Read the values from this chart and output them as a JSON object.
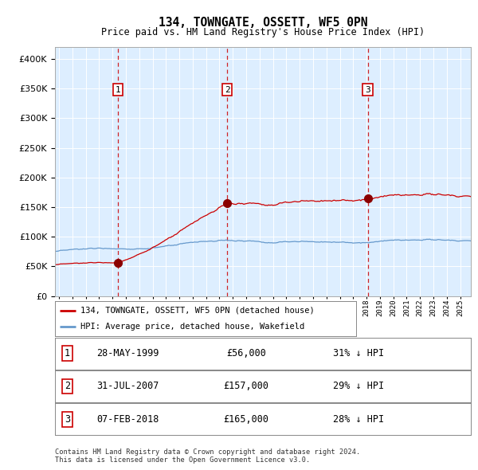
{
  "title": "134, TOWNGATE, OSSETT, WF5 0PN",
  "subtitle": "Price paid vs. HM Land Registry's House Price Index (HPI)",
  "background_color": "#ddeeff",
  "hpi_color": "#6699cc",
  "price_color": "#cc0000",
  "vline_color": "#cc0000",
  "purchases": [
    {
      "date_year": 1999.41,
      "price": 56000,
      "label": "1"
    },
    {
      "date_year": 2007.58,
      "price": 157000,
      "label": "2"
    },
    {
      "date_year": 2018.09,
      "price": 165000,
      "label": "3"
    }
  ],
  "purchase_labels": [
    {
      "label": "1",
      "date": "28-MAY-1999",
      "price": "£56,000",
      "note": "31% ↓ HPI"
    },
    {
      "label": "2",
      "date": "31-JUL-2007",
      "price": "£157,000",
      "note": "29% ↓ HPI"
    },
    {
      "label": "3",
      "date": "07-FEB-2018",
      "price": "£165,000",
      "note": "28% ↓ HPI"
    }
  ],
  "legend_entries": [
    "134, TOWNGATE, OSSETT, WF5 0PN (detached house)",
    "HPI: Average price, detached house, Wakefield"
  ],
  "footer": "Contains HM Land Registry data © Crown copyright and database right 2024.\nThis data is licensed under the Open Government Licence v3.0.",
  "ylim": [
    0,
    420000
  ],
  "yticks": [
    0,
    50000,
    100000,
    150000,
    200000,
    250000,
    300000,
    350000,
    400000
  ],
  "xstart": 1994.7,
  "xend": 2025.8
}
